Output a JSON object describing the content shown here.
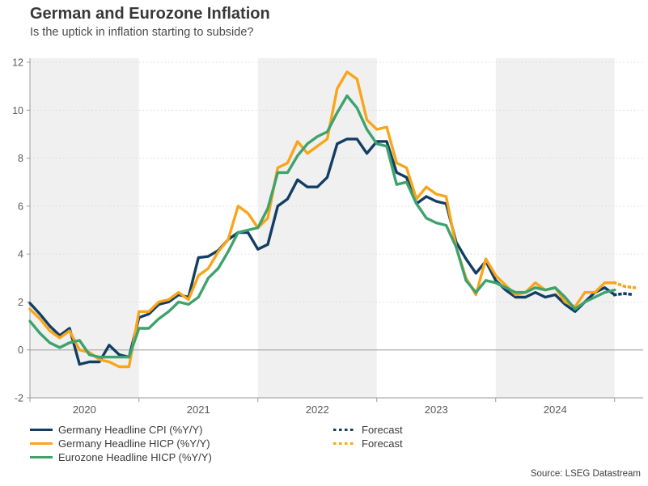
{
  "header": {
    "title": "German and Eurozone Inflation",
    "subtitle": "Is the uptick in inflation starting to subside?"
  },
  "source": "Source: LSEG Datastream",
  "colors": {
    "germany_cpi": "#123E63",
    "germany_hicp": "#F9A51A",
    "eurozone_hicp": "#3EA26C",
    "band": "#F0F0F0",
    "gridline": "#DADADA",
    "zero_line": "#ABABAB",
    "axis": "#9B9B9B",
    "tick_text": "#595959"
  },
  "legend": {
    "items": [
      {
        "label": "Germany Headline CPI (%Y/Y)",
        "color": "#123E63",
        "style": "solid"
      },
      {
        "label": "Germany Headline HICP (%Y/Y)",
        "color": "#F9A51A",
        "style": "solid"
      },
      {
        "label": "Eurozone Headline HICP (%Y/Y)",
        "color": "#3EA26C",
        "style": "solid"
      }
    ],
    "forecast_items": [
      {
        "label": "Forecast",
        "color": "#123E63",
        "style": "dotted"
      },
      {
        "label": "Forecast",
        "color": "#F9A51A",
        "style": "dotted"
      }
    ]
  },
  "chart_data": {
    "type": "line",
    "title": "German and Eurozone Inflation",
    "xlabel": "",
    "ylabel": "",
    "ylim": [
      -2,
      12
    ],
    "yticks": [
      -2,
      0,
      2,
      4,
      6,
      8,
      10,
      12
    ],
    "x_tick_labels": [
      "2020",
      "2021",
      "2022",
      "2023",
      "2024"
    ],
    "grid": "dotted horizontal, zero line solid, alternate-year shading on 2020/2022/2024",
    "legend_position": "bottom",
    "months": [
      "2020-02",
      "2020-03",
      "2020-04",
      "2020-05",
      "2020-06",
      "2020-07",
      "2020-08",
      "2020-09",
      "2020-10",
      "2020-11",
      "2020-12",
      "2021-01",
      "2021-02",
      "2021-03",
      "2021-04",
      "2021-05",
      "2021-06",
      "2021-07",
      "2021-08",
      "2021-09",
      "2021-10",
      "2021-11",
      "2021-12",
      "2022-01",
      "2022-02",
      "2022-03",
      "2022-04",
      "2022-05",
      "2022-06",
      "2022-07",
      "2022-08",
      "2022-09",
      "2022-10",
      "2022-11",
      "2022-12",
      "2023-01",
      "2023-02",
      "2023-03",
      "2023-04",
      "2023-05",
      "2023-06",
      "2023-07",
      "2023-08",
      "2023-09",
      "2023-10",
      "2023-11",
      "2023-12",
      "2024-01",
      "2024-02",
      "2024-03",
      "2024-04",
      "2024-05",
      "2024-06",
      "2024-07",
      "2024-08",
      "2024-09",
      "2024-10",
      "2024-11",
      "2024-12",
      "2025-01"
    ],
    "series": [
      {
        "name": "Germany Headline CPI (%Y/Y)",
        "color": "#123E63",
        "values": [
          1.95,
          1.5,
          1.0,
          0.6,
          0.9,
          -0.6,
          -0.5,
          -0.5,
          0.2,
          -0.2,
          -0.3,
          1.35,
          1.5,
          1.9,
          2.0,
          2.3,
          2.2,
          3.85,
          3.9,
          4.15,
          4.6,
          4.9,
          4.9,
          4.2,
          4.4,
          6.0,
          6.3,
          7.1,
          6.8,
          6.8,
          7.2,
          8.6,
          8.8,
          8.8,
          8.2,
          8.7,
          8.7,
          7.4,
          7.2,
          6.1,
          6.4,
          6.2,
          6.1,
          4.5,
          3.8,
          3.2,
          3.7,
          2.9,
          2.5,
          2.2,
          2.2,
          2.4,
          2.2,
          2.3,
          1.9,
          1.6,
          2.0,
          2.4,
          2.6,
          2.3
        ]
      },
      {
        "name": "Germany Headline HICP (%Y/Y)",
        "color": "#F9A51A",
        "values": [
          1.7,
          1.3,
          0.8,
          0.5,
          0.8,
          0.0,
          -0.1,
          -0.4,
          -0.5,
          -0.7,
          -0.7,
          1.6,
          1.6,
          2.0,
          2.1,
          2.4,
          2.1,
          3.1,
          3.4,
          4.1,
          4.6,
          6.0,
          5.7,
          5.1,
          5.5,
          7.6,
          7.8,
          8.7,
          8.2,
          8.5,
          8.8,
          10.9,
          11.6,
          11.3,
          9.6,
          9.2,
          9.3,
          7.8,
          7.6,
          6.3,
          6.8,
          6.5,
          6.4,
          4.3,
          3.0,
          2.3,
          3.8,
          3.1,
          2.7,
          2.3,
          2.4,
          2.8,
          2.5,
          2.6,
          2.0,
          1.8,
          2.4,
          2.4,
          2.8,
          2.8
        ]
      },
      {
        "name": "Eurozone Headline HICP (%Y/Y)",
        "color": "#3EA26C",
        "values": [
          1.2,
          0.7,
          0.3,
          0.1,
          0.3,
          0.4,
          -0.2,
          -0.3,
          -0.3,
          -0.3,
          -0.3,
          0.9,
          0.9,
          1.3,
          1.6,
          2.0,
          1.9,
          2.2,
          3.0,
          3.4,
          4.1,
          4.9,
          5.0,
          5.1,
          5.9,
          7.4,
          7.4,
          8.1,
          8.6,
          8.9,
          9.1,
          9.9,
          10.6,
          10.1,
          9.2,
          8.6,
          8.5,
          6.9,
          7.0,
          6.1,
          5.5,
          5.3,
          5.2,
          4.3,
          2.9,
          2.4,
          2.9,
          2.8,
          2.6,
          2.4,
          2.4,
          2.6,
          2.5,
          2.6,
          2.2,
          1.7,
          2.0,
          2.2,
          2.4,
          2.5
        ]
      }
    ],
    "forecast": {
      "months": [
        "2025-02",
        "2025-03"
      ],
      "series": [
        {
          "name": "Forecast (Germany Headline CPI)",
          "color": "#123E63",
          "values": [
            2.35,
            2.3
          ]
        },
        {
          "name": "Forecast (Germany Headline HICP)",
          "color": "#F9A51A",
          "values": [
            2.65,
            2.6
          ]
        }
      ]
    }
  }
}
